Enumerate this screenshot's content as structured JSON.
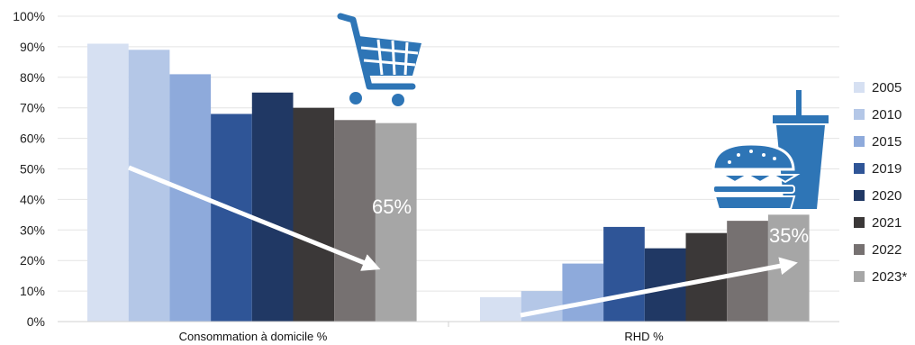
{
  "chart_data": {
    "type": "bar",
    "categories": [
      "Consommation à domicile %",
      "RHD %"
    ],
    "ylim": [
      0,
      100
    ],
    "yticks": [
      0,
      10,
      20,
      30,
      40,
      50,
      60,
      70,
      80,
      90,
      100
    ],
    "ytick_labels": [
      "0%",
      "10%",
      "20%",
      "30%",
      "40%",
      "50%",
      "60%",
      "70%",
      "80%",
      "90%",
      "100%"
    ],
    "grid": true,
    "legend_position": "right",
    "series": [
      {
        "name": "2005",
        "color": "#d6e0f2",
        "values": [
          91,
          8
        ]
      },
      {
        "name": "2010",
        "color": "#b4c7e7",
        "values": [
          89,
          10
        ]
      },
      {
        "name": "2015",
        "color": "#8eaadb",
        "values": [
          81,
          19
        ]
      },
      {
        "name": "2019",
        "color": "#2f5597",
        "values": [
          68,
          31
        ]
      },
      {
        "name": "2020",
        "color": "#203864",
        "values": [
          75,
          24
        ]
      },
      {
        "name": "2021",
        "color": "#3b3838",
        "values": [
          70,
          29
        ]
      },
      {
        "name": "2022",
        "color": "#767171",
        "values": [
          66,
          33
        ]
      },
      {
        "name": "2023*",
        "color": "#a6a6a6",
        "values": [
          65,
          35
        ]
      }
    ],
    "annotations": [
      {
        "text": "65%",
        "category": 0,
        "series": 7
      },
      {
        "text": "35%",
        "category": 1,
        "series": 7
      }
    ],
    "icons": [
      "shopping-cart-icon",
      "fast-food-icon"
    ],
    "icon_color": "#2e75b6"
  }
}
